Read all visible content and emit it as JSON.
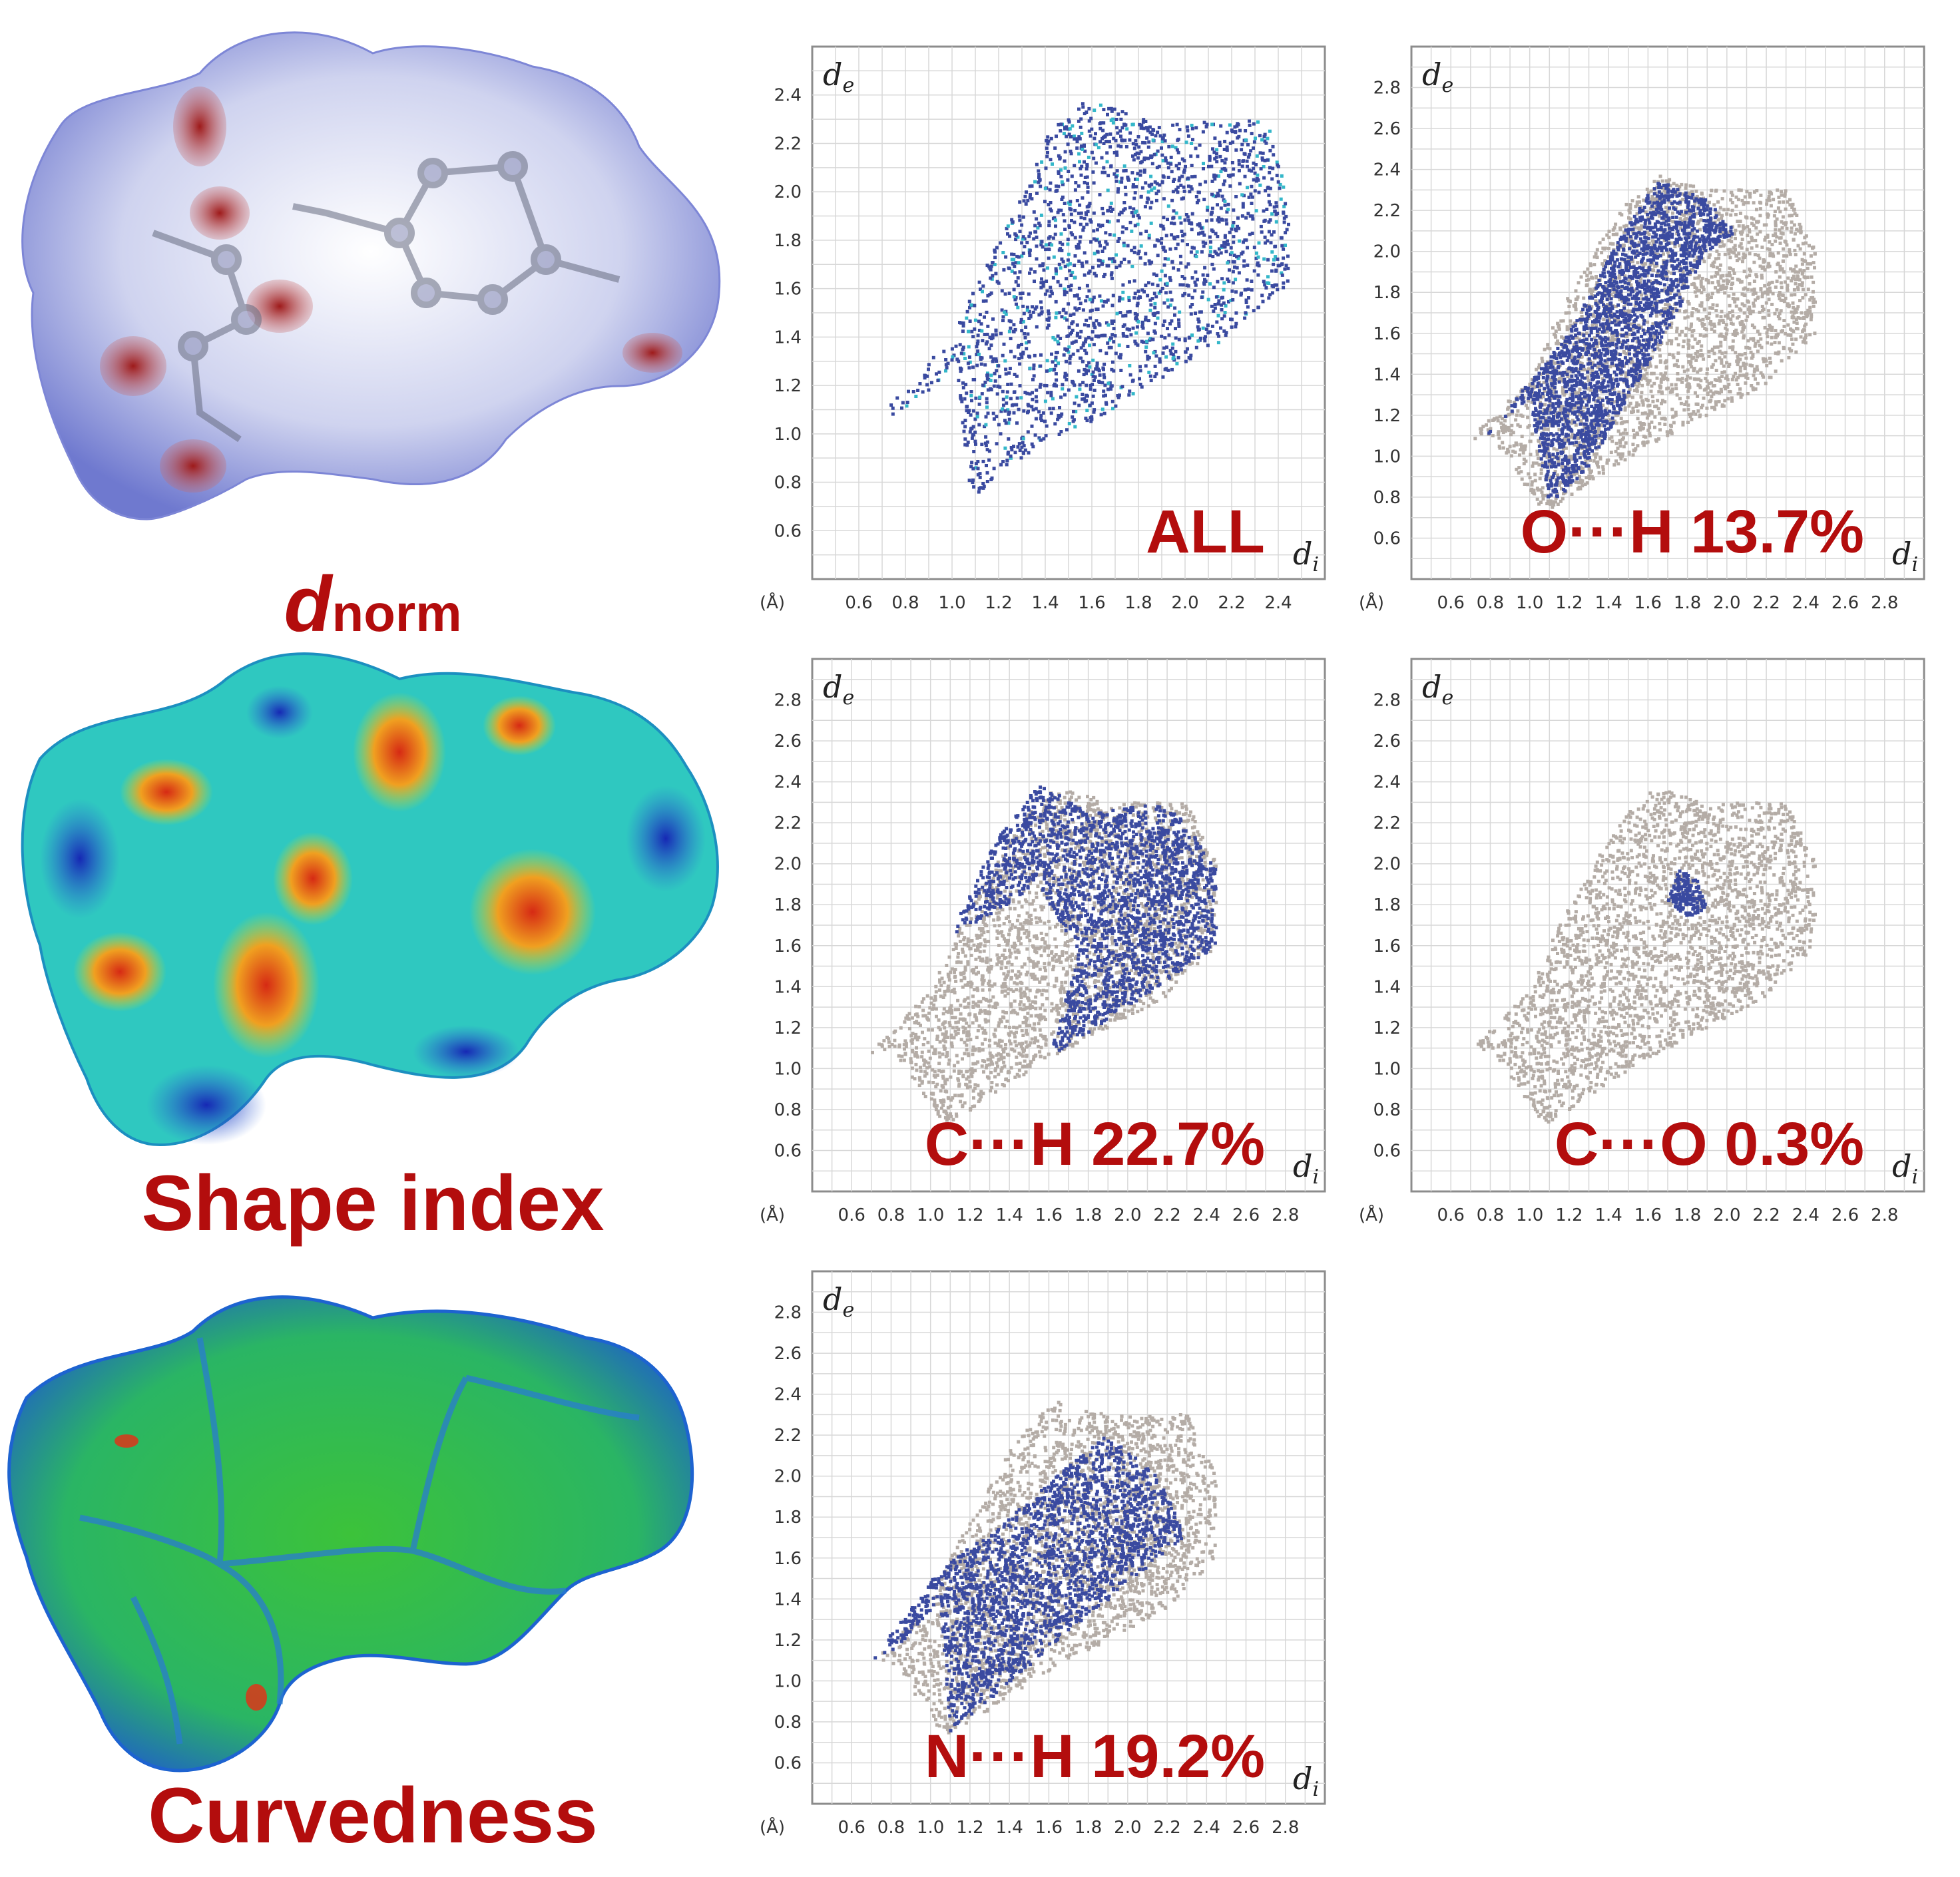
{
  "surfaces": [
    {
      "label_main": "d",
      "label_sub": "norm",
      "map": "dnorm"
    },
    {
      "label_main": "Shape index",
      "label_sub": "",
      "map": "shape-index"
    },
    {
      "label_main": "Curvedness",
      "label_sub": "",
      "map": "curvedness"
    }
  ],
  "colors": {
    "caption_red": "#b30d0d",
    "points_blue": "#3a4aa0",
    "points_cyan": "#34b7c9",
    "background_grey": "#b4aca6",
    "grid": "#d8d8d8",
    "frame": "#8c8c8c"
  },
  "chart_data": [
    {
      "type": "scatter",
      "title": "ALL",
      "xlabel": "d",
      "xlabel_sub": "i",
      "ylabel": "d",
      "ylabel_sub": "e",
      "unit_label": "(Å)",
      "xlim": [
        0.4,
        2.6
      ],
      "ylim": [
        0.4,
        2.6
      ],
      "xticks": [
        "0.6",
        "0.8",
        "1.0",
        "1.2",
        "1.4",
        "1.6",
        "1.8",
        "2.0",
        "2.2",
        "2.4"
      ],
      "yticks": [
        "0.6",
        "0.8",
        "1.0",
        "1.2",
        "1.4",
        "1.6",
        "1.8",
        "2.0",
        "2.2",
        "2.4"
      ],
      "grid": true,
      "highlight_region": [
        [
          0.68,
          1.07
        ],
        [
          0.78,
          1.08
        ],
        [
          1.02,
          1.28
        ],
        [
          1.08,
          0.72
        ],
        [
          1.22,
          0.86
        ],
        [
          1.6,
          1.05
        ],
        [
          2.15,
          1.38
        ],
        [
          2.45,
          1.62
        ],
        [
          2.45,
          1.95
        ],
        [
          2.35,
          2.3
        ],
        [
          1.95,
          2.28
        ],
        [
          1.55,
          2.38
        ],
        [
          1.42,
          2.25
        ],
        [
          1.15,
          1.7
        ],
        [
          1.0,
          1.4
        ]
      ],
      "background_region": [],
      "show_background": false
    },
    {
      "type": "scatter",
      "title": "O···H 13.7%",
      "xlabel": "d",
      "xlabel_sub": "i",
      "ylabel": "d",
      "ylabel_sub": "e",
      "unit_label": "(Å)",
      "xlim": [
        0.4,
        3.0
      ],
      "ylim": [
        0.4,
        3.0
      ],
      "xticks": [
        "0.6",
        "0.8",
        "1.0",
        "1.2",
        "1.4",
        "1.6",
        "1.8",
        "2.0",
        "2.2",
        "2.4",
        "2.6",
        "2.8"
      ],
      "yticks": [
        "0.6",
        "0.8",
        "1.0",
        "1.2",
        "1.4",
        "1.6",
        "1.8",
        "2.0",
        "2.2",
        "2.4",
        "2.6",
        "2.8"
      ],
      "grid": true,
      "highlight_region": [
        [
          0.78,
          1.1
        ],
        [
          1.0,
          1.28
        ],
        [
          1.1,
          0.75
        ],
        [
          1.3,
          0.95
        ],
        [
          1.45,
          1.2
        ],
        [
          1.75,
          1.7
        ],
        [
          1.9,
          2.0
        ],
        [
          2.05,
          2.1
        ],
        [
          1.9,
          2.25
        ],
        [
          1.65,
          2.35
        ],
        [
          1.45,
          2.05
        ],
        [
          1.2,
          1.6
        ]
      ],
      "background_region": [
        [
          0.68,
          1.07
        ],
        [
          0.8,
          1.1
        ],
        [
          1.08,
          0.72
        ],
        [
          1.6,
          1.05
        ],
        [
          2.2,
          1.35
        ],
        [
          2.45,
          1.6
        ],
        [
          2.45,
          2.0
        ],
        [
          2.3,
          2.3
        ],
        [
          1.9,
          2.3
        ],
        [
          1.65,
          2.38
        ],
        [
          1.45,
          2.2
        ],
        [
          1.15,
          1.7
        ],
        [
          1.0,
          1.38
        ]
      ],
      "show_background": true
    },
    {
      "type": "scatter",
      "title": "C···H 22.7%",
      "xlabel": "d",
      "xlabel_sub": "i",
      "ylabel": "d",
      "ylabel_sub": "e",
      "unit_label": "(Å)",
      "xlim": [
        0.4,
        3.0
      ],
      "ylim": [
        0.4,
        3.0
      ],
      "xticks": [
        "0.6",
        "0.8",
        "1.0",
        "1.2",
        "1.4",
        "1.6",
        "1.8",
        "2.0",
        "2.2",
        "2.4",
        "2.6",
        "2.8"
      ],
      "yticks": [
        "0.6",
        "0.8",
        "1.0",
        "1.2",
        "1.4",
        "1.6",
        "1.8",
        "2.0",
        "2.2",
        "2.4",
        "2.6",
        "2.8"
      ],
      "grid": true,
      "highlight_region": [
        [
          1.1,
          1.65
        ],
        [
          1.3,
          1.75
        ],
        [
          1.55,
          1.9
        ],
        [
          1.75,
          1.55
        ],
        [
          1.6,
          1.05
        ],
        [
          2.0,
          1.3
        ],
        [
          2.45,
          1.6
        ],
        [
          2.45,
          2.0
        ],
        [
          2.2,
          2.3
        ],
        [
          1.85,
          2.25
        ],
        [
          1.55,
          2.38
        ],
        [
          1.35,
          2.15
        ]
      ],
      "background_region": [
        [
          0.68,
          1.07
        ],
        [
          0.8,
          1.1
        ],
        [
          1.08,
          0.72
        ],
        [
          1.6,
          1.05
        ],
        [
          2.2,
          1.35
        ],
        [
          2.45,
          1.6
        ],
        [
          2.45,
          2.0
        ],
        [
          2.3,
          2.3
        ],
        [
          1.9,
          2.3
        ],
        [
          1.65,
          2.38
        ],
        [
          1.45,
          2.2
        ],
        [
          1.15,
          1.7
        ],
        [
          1.0,
          1.38
        ]
      ],
      "show_background": true
    },
    {
      "type": "scatter",
      "title": "C···O 0.3%",
      "xlabel": "d",
      "xlabel_sub": "i",
      "ylabel": "d",
      "ylabel_sub": "e",
      "unit_label": "(Å)",
      "xlim": [
        0.4,
        3.0
      ],
      "ylim": [
        0.4,
        3.0
      ],
      "xticks": [
        "0.6",
        "0.8",
        "1.0",
        "1.2",
        "1.4",
        "1.6",
        "1.8",
        "2.0",
        "2.2",
        "2.4",
        "2.6",
        "2.8"
      ],
      "yticks": [
        "0.6",
        "0.8",
        "1.0",
        "1.2",
        "1.4",
        "1.6",
        "1.8",
        "2.0",
        "2.2",
        "2.4",
        "2.6",
        "2.8"
      ],
      "grid": true,
      "highlight_region": [
        [
          1.7,
          1.82
        ],
        [
          1.76,
          1.98
        ],
        [
          1.85,
          1.92
        ],
        [
          1.9,
          1.78
        ],
        [
          1.8,
          1.74
        ]
      ],
      "background_region": [
        [
          0.68,
          1.07
        ],
        [
          0.8,
          1.1
        ],
        [
          1.08,
          0.72
        ],
        [
          1.6,
          1.05
        ],
        [
          2.2,
          1.35
        ],
        [
          2.45,
          1.6
        ],
        [
          2.45,
          2.0
        ],
        [
          2.3,
          2.3
        ],
        [
          1.9,
          2.3
        ],
        [
          1.65,
          2.38
        ],
        [
          1.45,
          2.2
        ],
        [
          1.15,
          1.7
        ],
        [
          1.0,
          1.38
        ]
      ],
      "show_background": true
    },
    {
      "type": "scatter",
      "title": "N···H 19.2%",
      "xlabel": "d",
      "xlabel_sub": "i",
      "ylabel": "d",
      "ylabel_sub": "e",
      "unit_label": "(Å)",
      "xlim": [
        0.4,
        3.0
      ],
      "ylim": [
        0.4,
        3.0
      ],
      "xticks": [
        "0.6",
        "0.8",
        "1.0",
        "1.2",
        "1.4",
        "1.6",
        "1.8",
        "2.0",
        "2.2",
        "2.4",
        "2.6",
        "2.8"
      ],
      "yticks": [
        "0.6",
        "0.8",
        "1.0",
        "1.2",
        "1.4",
        "1.6",
        "1.8",
        "2.0",
        "2.2",
        "2.4",
        "2.6",
        "2.8"
      ],
      "grid": true,
      "highlight_region": [
        [
          0.68,
          1.07
        ],
        [
          0.85,
          1.18
        ],
        [
          1.05,
          1.4
        ],
        [
          1.1,
          0.75
        ],
        [
          1.35,
          0.95
        ],
        [
          1.65,
          1.2
        ],
        [
          2.1,
          1.55
        ],
        [
          2.3,
          1.7
        ],
        [
          2.15,
          2.0
        ],
        [
          1.9,
          2.2
        ],
        [
          1.7,
          2.05
        ],
        [
          1.35,
          1.75
        ],
        [
          1.05,
          1.55
        ]
      ],
      "background_region": [
        [
          0.68,
          1.07
        ],
        [
          0.8,
          1.1
        ],
        [
          1.08,
          0.72
        ],
        [
          1.6,
          1.05
        ],
        [
          2.2,
          1.35
        ],
        [
          2.45,
          1.6
        ],
        [
          2.45,
          2.0
        ],
        [
          2.3,
          2.3
        ],
        [
          1.9,
          2.3
        ],
        [
          1.65,
          2.38
        ],
        [
          1.45,
          2.2
        ],
        [
          1.15,
          1.7
        ],
        [
          1.0,
          1.38
        ]
      ],
      "show_background": true
    }
  ]
}
